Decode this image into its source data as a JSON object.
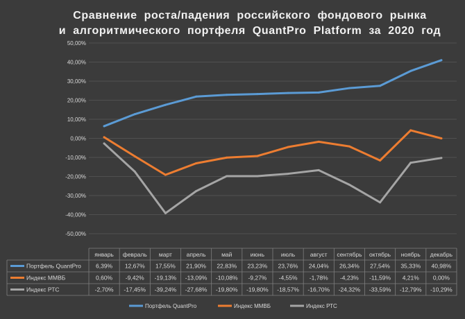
{
  "title": {
    "line1": "Сравнение роста/падения российского фондового рынка",
    "line2": "и алгоритмического портфеля QuantPro Platform за 2020 год"
  },
  "chart_data": {
    "type": "line",
    "categories": [
      "январь",
      "февраль",
      "март",
      "апрель",
      "май",
      "июнь",
      "июль",
      "август",
      "сентябрь",
      "октябрь",
      "ноябрь",
      "декабрь"
    ],
    "ylim": [
      -50,
      50
    ],
    "ytick_step": 10,
    "y_ticks": [
      "50,00%",
      "40,00%",
      "30,00%",
      "20,00%",
      "10,00%",
      "0,00%",
      "-10,00%",
      "-20,00%",
      "-30,00%",
      "-40,00%",
      "-50,00%"
    ],
    "grid": true,
    "legend_position": "bottom",
    "series": [
      {
        "name": "Портфель QuantPro",
        "color": "#5b9bd5",
        "values": [
          6.39,
          12.67,
          17.55,
          21.9,
          22.83,
          23.23,
          23.76,
          24.04,
          26.34,
          27.54,
          35.33,
          40.98
        ],
        "labels": [
          "6,39%",
          "12,67%",
          "17,55%",
          "21,90%",
          "22,83%",
          "23,23%",
          "23,76%",
          "24,04%",
          "26,34%",
          "27,54%",
          "35,33%",
          "40,98%"
        ]
      },
      {
        "name": "Индекс ММВБ",
        "color": "#ed7d31",
        "values": [
          0.6,
          -9.42,
          -19.13,
          -13.09,
          -10.08,
          -9.27,
          -4.55,
          -1.78,
          -4.23,
          -11.59,
          4.21,
          0.0
        ],
        "labels": [
          "0,60%",
          "-9,42%",
          "-19,13%",
          "-13,09%",
          "-10,08%",
          "-9,27%",
          "-4,55%",
          "-1,78%",
          "-4,23%",
          "-11,59%",
          "4,21%",
          "0,00%"
        ]
      },
      {
        "name": "Индекс РТС",
        "color": "#a5a5a5",
        "values": [
          -2.7,
          -17.45,
          -39.24,
          -27.68,
          -19.8,
          -19.8,
          -18.57,
          -16.7,
          -24.32,
          -33.59,
          -12.79,
          -10.29
        ],
        "labels": [
          "-2,70%",
          "-17,45%",
          "-39,24%",
          "-27,68%",
          "-19,80%",
          "-19,80%",
          "-18,57%",
          "-16,70%",
          "-24,32%",
          "-33,59%",
          "-12,79%",
          "-10,29%"
        ]
      }
    ]
  }
}
